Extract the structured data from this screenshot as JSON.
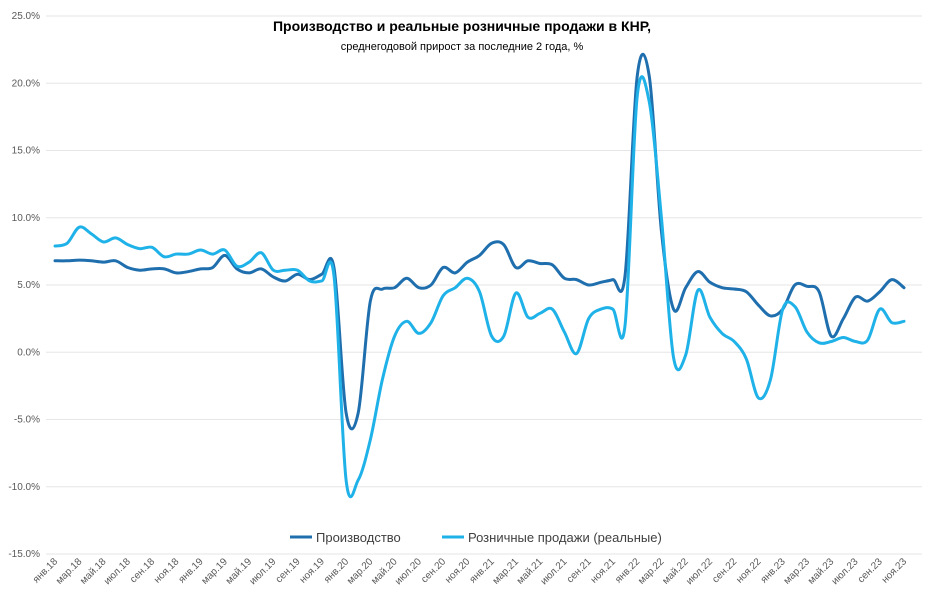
{
  "chart_data": {
    "type": "line",
    "title": "Производство и реальные розничные продажи в КНР,",
    "subtitle": "среднегодовой прирост за последние 2 года, %",
    "categories": [
      "янв.18",
      null,
      "мар.18",
      null,
      "май.18",
      null,
      "июл.18",
      null,
      "сен.18",
      null,
      "ноя.18",
      null,
      "янв.19",
      null,
      "мар.19",
      null,
      "май.19",
      null,
      "июл.19",
      null,
      "сен.19",
      null,
      "ноя.19",
      null,
      "янв.20",
      null,
      "мар.20",
      null,
      "май.20",
      null,
      "июл.20",
      null,
      "сен.20",
      null,
      "ноя.20",
      null,
      "янв.21",
      null,
      "мар.21",
      null,
      "май.21",
      null,
      "июл.21",
      null,
      "сен.21",
      null,
      "ноя.21",
      null,
      "янв.22",
      null,
      "мар.22",
      null,
      "май.22",
      null,
      "июл.22",
      null,
      "сен.22",
      null,
      "ноя.22",
      null,
      "янв.23",
      null,
      "мар.23",
      null,
      "май.23",
      null,
      "июл.23",
      null,
      "сен.23",
      null,
      "ноя.23"
    ],
    "series": [
      {
        "name": "Производство",
        "color": "#1f6fae",
        "values": [
          6.8,
          6.8,
          6.85,
          6.8,
          6.7,
          6.8,
          6.3,
          6.1,
          6.2,
          6.2,
          5.9,
          6.0,
          6.2,
          6.3,
          7.2,
          6.2,
          5.9,
          6.2,
          5.6,
          5.3,
          5.8,
          5.4,
          5.8,
          6.3,
          -4.5,
          -4.5,
          3.8,
          4.7,
          4.8,
          5.5,
          4.8,
          5.0,
          6.3,
          5.9,
          6.7,
          7.2,
          8.1,
          8.0,
          6.3,
          6.8,
          6.6,
          6.5,
          5.5,
          5.4,
          5.0,
          5.2,
          5.4,
          5.7,
          20.5,
          20.5,
          9.0,
          3.2,
          4.8,
          6.0,
          5.2,
          4.8,
          4.7,
          4.5,
          3.5,
          2.7,
          3.2,
          5.0,
          4.9,
          4.5,
          1.2,
          2.5,
          4.1,
          3.8,
          4.5,
          5.4,
          4.8
        ]
      },
      {
        "name": "Розничные продажи (реальные)",
        "color": "#1fb2e8",
        "values": [
          7.9,
          8.1,
          9.3,
          8.8,
          8.2,
          8.5,
          8.0,
          7.7,
          7.8,
          7.1,
          7.3,
          7.3,
          7.6,
          7.3,
          7.6,
          6.4,
          6.7,
          7.4,
          6.1,
          6.1,
          6.1,
          5.3,
          5.3,
          5.7,
          -9.5,
          -9.5,
          -6.5,
          -2.0,
          1.2,
          2.3,
          1.4,
          2.2,
          4.2,
          4.8,
          5.5,
          4.5,
          1.2,
          1.2,
          4.4,
          2.6,
          2.9,
          3.2,
          1.5,
          -0.1,
          2.5,
          3.2,
          3.2,
          2.0,
          19.0,
          18.6,
          10.0,
          -0.4,
          -0.2,
          4.6,
          2.6,
          1.4,
          0.8,
          -0.5,
          -3.4,
          -2.0,
          3.2,
          3.4,
          1.5,
          0.7,
          0.8,
          1.1,
          0.8,
          0.9,
          3.2,
          2.2,
          2.3
        ]
      }
    ],
    "ylim": [
      -15,
      25
    ],
    "yticks": [
      {
        "value": -15,
        "label": "-15.0%"
      },
      {
        "value": -10,
        "label": "-10.0%"
      },
      {
        "value": -5,
        "label": "-5.0%"
      },
      {
        "value": 0,
        "label": "0.0%"
      },
      {
        "value": 5,
        "label": "5.0%"
      },
      {
        "value": 10,
        "label": "10.0%"
      },
      {
        "value": 15,
        "label": "15.0%"
      },
      {
        "value": 20,
        "label": "20.0%"
      },
      {
        "value": 25,
        "label": "25.0%"
      }
    ],
    "grid": true,
    "legend": "bottom"
  }
}
